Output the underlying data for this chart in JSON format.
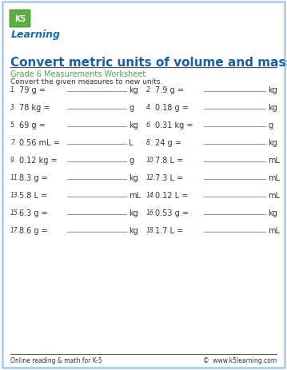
{
  "title": "Convert metric units of volume and mass",
  "subtitle": "Grade 6 Measurements Worksheet",
  "instruction": "Convert the given measures to new units.",
  "border_color": "#a8c8e8",
  "title_color": "#1a5fa8",
  "subtitle_color": "#4aaa4a",
  "footer_left": "Online reading & math for K-5",
  "footer_right": "©  www.k5learning.com",
  "problems": [
    {
      "num": "1.",
      "left": "79 g =",
      "unit": "kg"
    },
    {
      "num": "2.",
      "left": "7.9 g =",
      "unit": "kg"
    },
    {
      "num": "3.",
      "left": "78 kg =",
      "unit": "g"
    },
    {
      "num": "4.",
      "left": "0.18 g =",
      "unit": "kg"
    },
    {
      "num": "5.",
      "left": "69 g =",
      "unit": "kg"
    },
    {
      "num": "6.",
      "left": "0.31 kg =",
      "unit": "g"
    },
    {
      "num": "7.",
      "left": "0.56 mL =",
      "unit": "L"
    },
    {
      "num": "8.",
      "left": "24 g =",
      "unit": "kg"
    },
    {
      "num": "9.",
      "left": "0.12 kg =",
      "unit": "g"
    },
    {
      "num": "10.",
      "left": "7.8 L =",
      "unit": "mL"
    },
    {
      "num": "11.",
      "left": "8.3 g =",
      "unit": "kg"
    },
    {
      "num": "12.",
      "left": "7.3 L =",
      "unit": "mL"
    },
    {
      "num": "13.",
      "left": "5.8 L =",
      "unit": "mL"
    },
    {
      "num": "14.",
      "left": "0.12 L =",
      "unit": "mL"
    },
    {
      "num": "15.",
      "left": "6.3 g =",
      "unit": "kg"
    },
    {
      "num": "16.",
      "left": "0.53 g =",
      "unit": "kg"
    },
    {
      "num": "17.",
      "left": "8.6 g =",
      "unit": "kg"
    },
    {
      "num": "18.",
      "left": "1.7 L =",
      "unit": "mL"
    }
  ],
  "bg_color": "#ffffff",
  "text_color": "#333333",
  "line_color": "#999999",
  "title_fontsize": 11.0,
  "subtitle_fontsize": 7.0,
  "instruction_fontsize": 6.5,
  "problem_num_fontsize": 5.5,
  "problem_fontsize": 7.0,
  "footer_fontsize": 5.5,
  "logo_green": "#5ab040",
  "logo_blue": "#1a6ca8"
}
